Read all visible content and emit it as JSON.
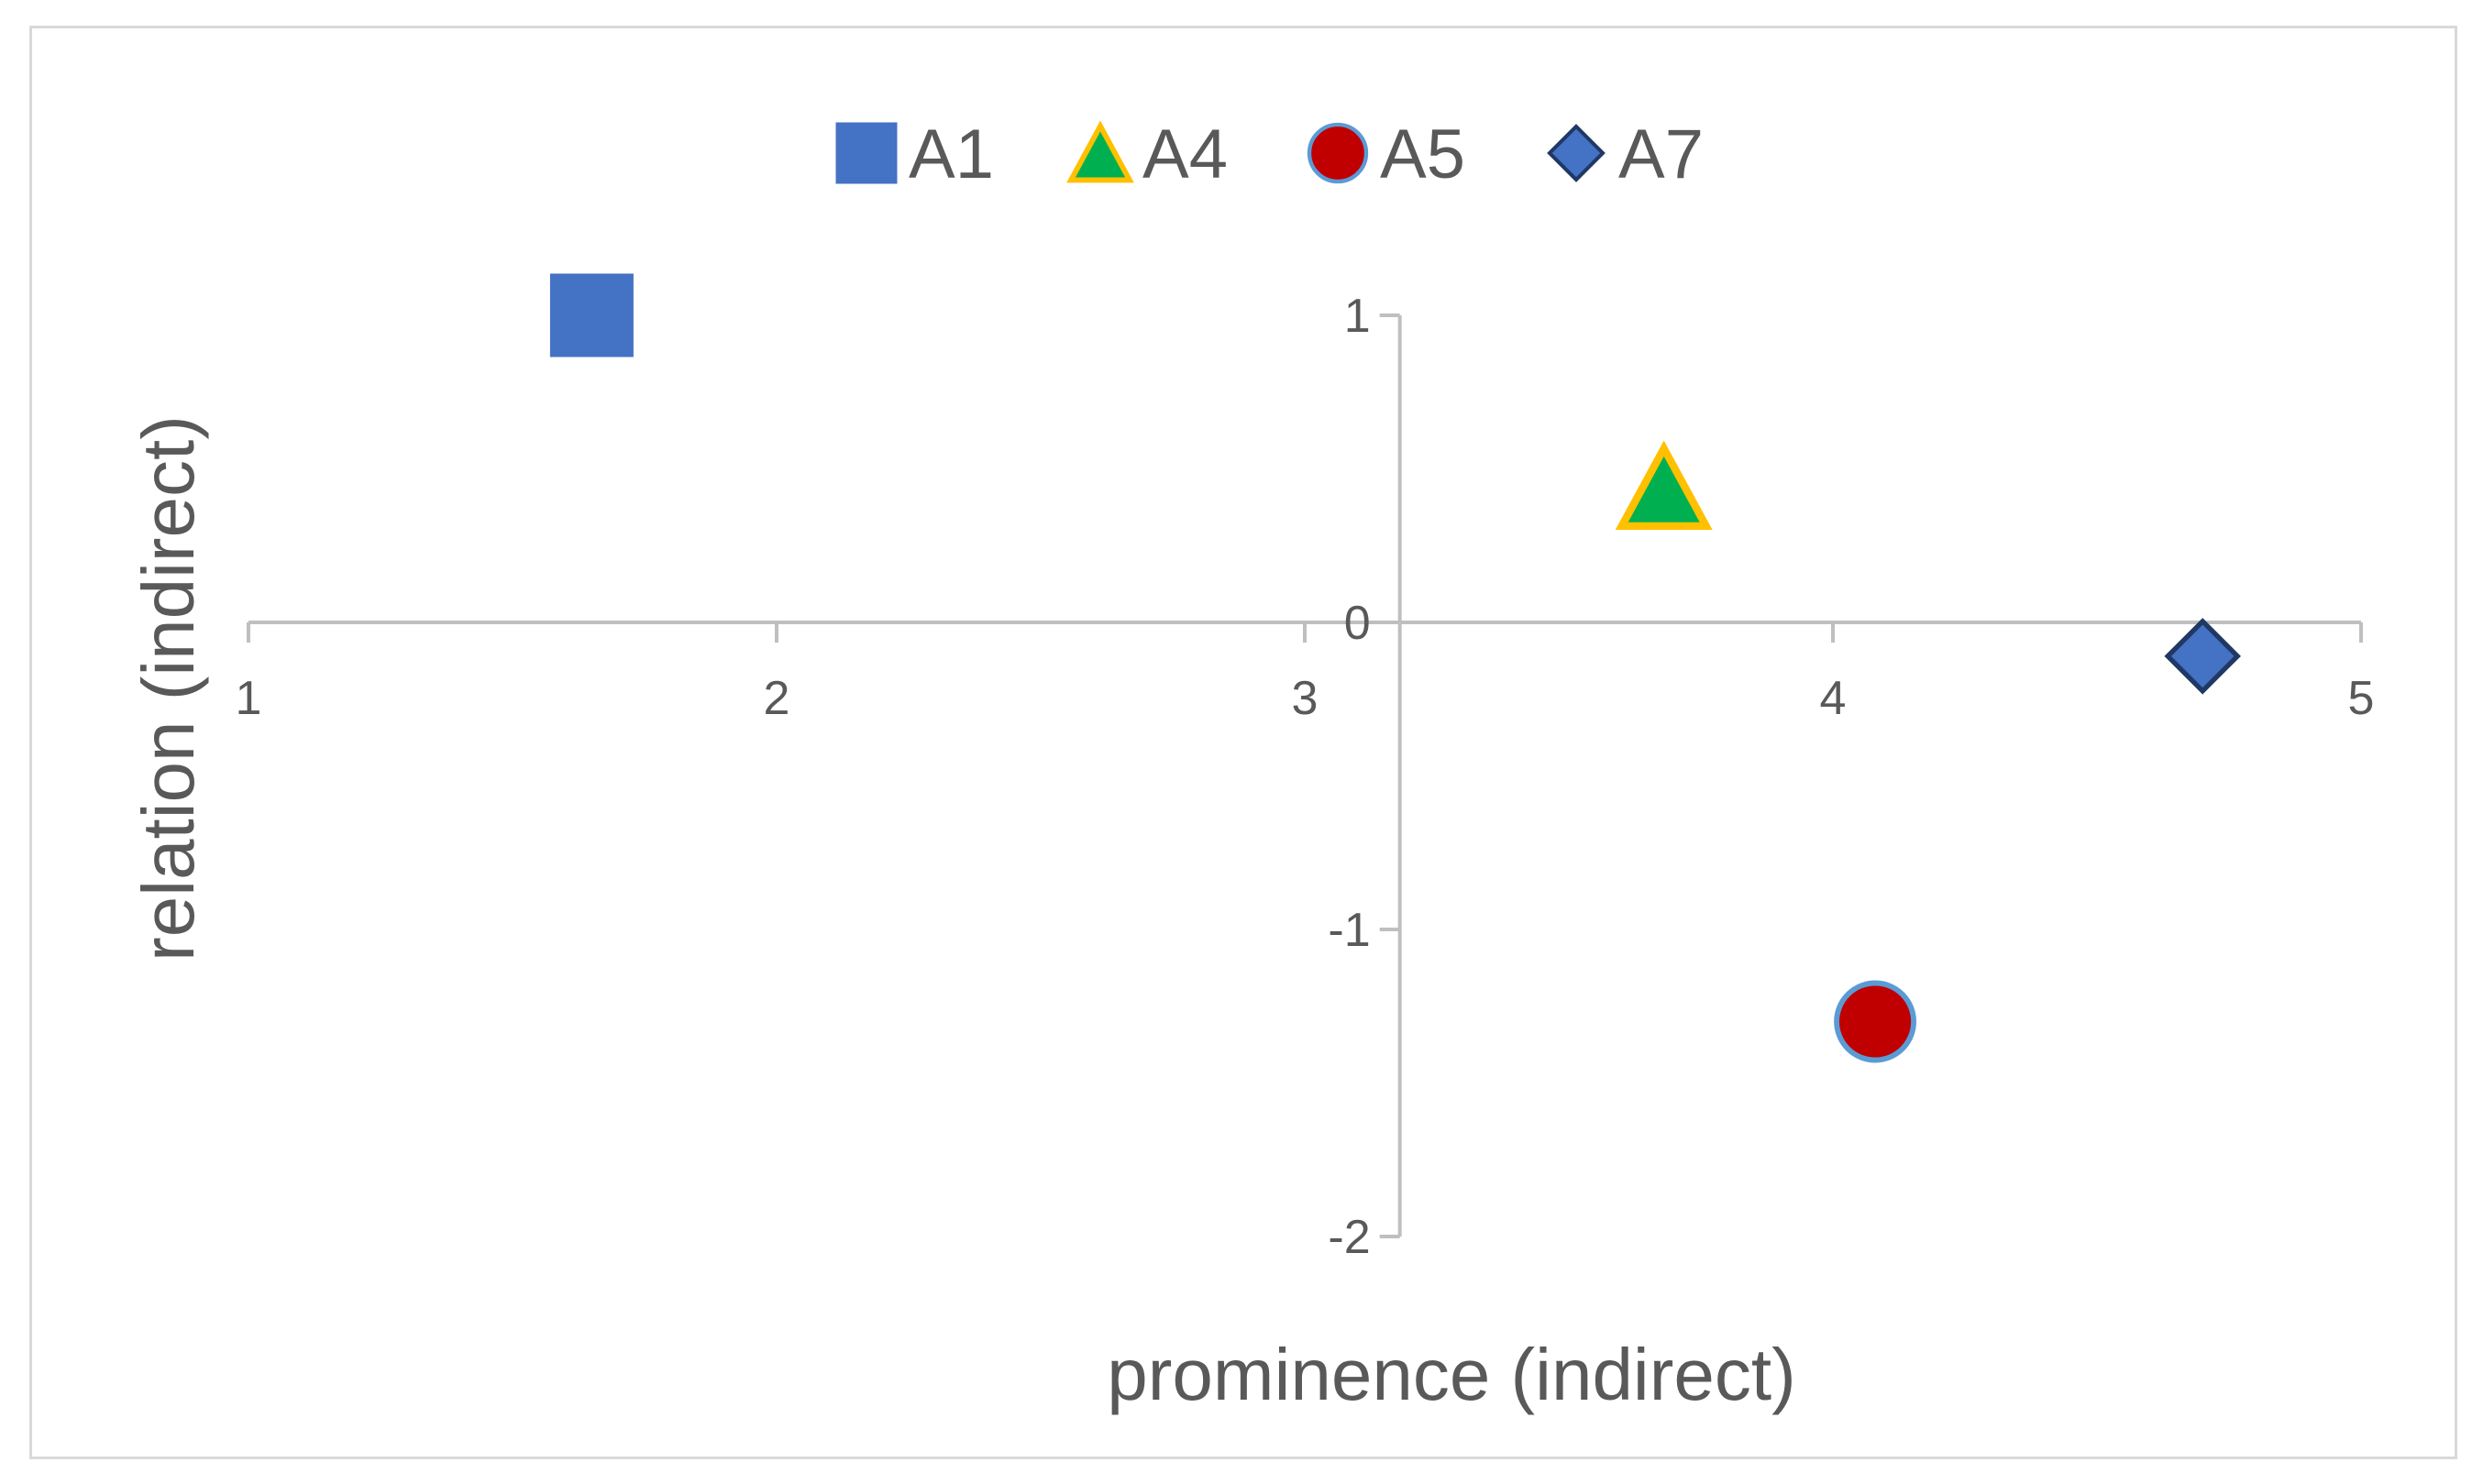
{
  "chart_data": {
    "type": "scatter",
    "title": "",
    "xlabel": "prominence (indirect)",
    "ylabel": "relation (indirect)",
    "xlim": [
      1,
      5
    ],
    "ylim": [
      -2,
      1
    ],
    "x_ticks": [
      1,
      2,
      3,
      4,
      5
    ],
    "y_ticks": [
      -2,
      -1,
      0,
      1
    ],
    "x_tick_labels": [
      "1",
      "2",
      "3",
      "4",
      "5"
    ],
    "y_tick_labels": [
      "-2",
      "-1",
      "0",
      "1"
    ],
    "axes_cross": {
      "x_at_y": 0,
      "y_at_x": 3.18
    },
    "grid": false,
    "legend_position": "top",
    "series": [
      {
        "name": "A1",
        "marker": "square",
        "color": "#4472c4",
        "edge": "#4472c4",
        "points": [
          {
            "x": 1.65,
            "y": 1.0
          }
        ]
      },
      {
        "name": "A4",
        "marker": "triangle",
        "color": "#00b050",
        "edge": "#ffc000",
        "points": [
          {
            "x": 3.68,
            "y": 0.44
          }
        ]
      },
      {
        "name": "A5",
        "marker": "circle",
        "color": "#c00000",
        "edge": "#5b9bd5",
        "points": [
          {
            "x": 4.08,
            "y": -1.3
          }
        ]
      },
      {
        "name": "A7",
        "marker": "diamond",
        "color": "#4472c4",
        "edge": "#203864",
        "points": [
          {
            "x": 4.7,
            "y": -0.11
          }
        ]
      }
    ]
  },
  "colors": {
    "axis": "#bfbfbf",
    "text": "#595959",
    "frame": "#d9d9d9"
  }
}
